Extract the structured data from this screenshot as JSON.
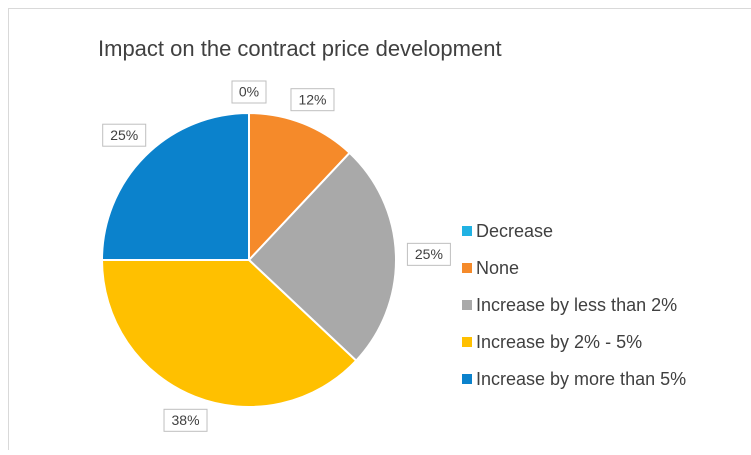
{
  "chart_data": {
    "type": "pie",
    "title": "Impact on the contract price development",
    "categories": [
      "Decrease",
      "None",
      "Increase by less than 2%",
      "Increase by 2% - 5%",
      "Increase by more than 5%"
    ],
    "values": [
      0,
      12,
      25,
      38,
      25
    ],
    "value_labels": [
      "0%",
      "12%",
      "25%",
      "38%",
      "25%"
    ],
    "colors": [
      "#21b2e3",
      "#f58a2a",
      "#a9a9a9",
      "#ffc000",
      "#0b82cc"
    ],
    "legend": "right"
  }
}
